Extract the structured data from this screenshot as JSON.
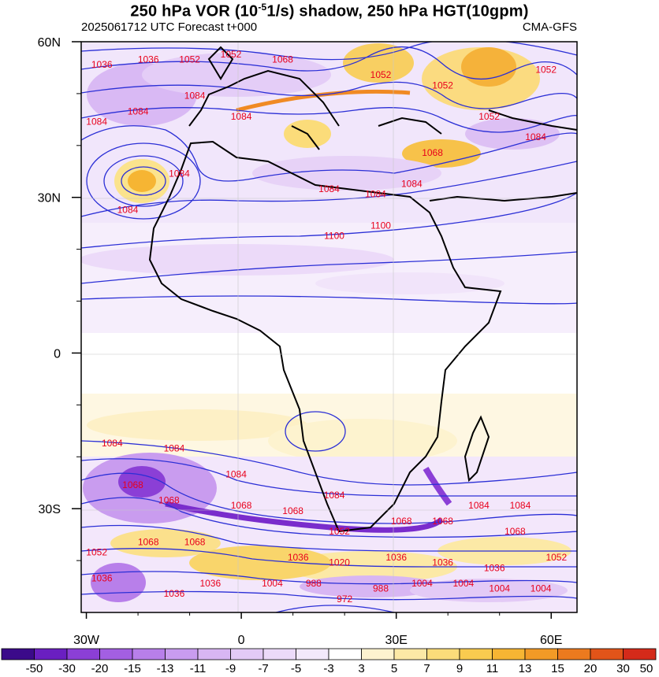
{
  "title": {
    "part1": "250 hPa  VOR (10",
    "sup": "-5",
    "part2": "1/s) shadow, 250 hPa HGT(10gpm)"
  },
  "subtitle": {
    "left": "2025061712 UTC Forecast t+000",
    "right": "CMA-GFS"
  },
  "axes": {
    "x_ticks": [
      {
        "label": "30W",
        "lon": -30
      },
      {
        "label": "0",
        "lon": 0
      },
      {
        "label": "30E",
        "lon": 30
      },
      {
        "label": "60E",
        "lon": 60
      }
    ],
    "y_ticks": [
      {
        "label": "60N",
        "lat": 60
      },
      {
        "label": "30N",
        "lat": 30
      },
      {
        "label": "0",
        "lat": 0
      },
      {
        "label": "30S",
        "lat": -30
      }
    ],
    "lon_range": [
      -31,
      65
    ],
    "lat_range": [
      -50,
      60
    ]
  },
  "colorbar": {
    "labels": [
      "-50",
      "-30",
      "-20",
      "-15",
      "-13",
      "-11",
      "-9",
      "-7",
      "-5",
      "-3",
      "3",
      "5",
      "7",
      "9",
      "11",
      "13",
      "15",
      "20",
      "30",
      "50"
    ],
    "colors": [
      "#3b0a8a",
      "#6a1fc1",
      "#8b3fd6",
      "#a35fe2",
      "#b87fea",
      "#c99cef",
      "#d8b6f3",
      "#e3caf6",
      "#ecdaf9",
      "#f3e9fb",
      "#ffffff",
      "#fdf3cf",
      "#fce9a6",
      "#fbdc7a",
      "#f9cb4f",
      "#f6b533",
      "#f29a26",
      "#ec7a1e",
      "#e25419",
      "#d42a1a"
    ]
  },
  "contour_labels": [
    {
      "text": "1036",
      "lon": -27,
      "lat": 55
    },
    {
      "text": "1036",
      "lon": -18,
      "lat": 56
    },
    {
      "text": "1052",
      "lon": -10,
      "lat": 56
    },
    {
      "text": "1052",
      "lon": -2,
      "lat": 57
    },
    {
      "text": "1068",
      "lon": 8,
      "lat": 56
    },
    {
      "text": "1052",
      "lon": 27,
      "lat": 53
    },
    {
      "text": "1052",
      "lon": 39,
      "lat": 51
    },
    {
      "text": "1052",
      "lon": 59,
      "lat": 54
    },
    {
      "text": "1084",
      "lon": -9,
      "lat": 49
    },
    {
      "text": "1084",
      "lon": -20,
      "lat": 46
    },
    {
      "text": "1084",
      "lon": -28,
      "lat": 44
    },
    {
      "text": "1084",
      "lon": 0,
      "lat": 45
    },
    {
      "text": "1052",
      "lon": 48,
      "lat": 45
    },
    {
      "text": "1084",
      "lon": 57,
      "lat": 41
    },
    {
      "text": "1068",
      "lon": 37,
      "lat": 38
    },
    {
      "text": "1084",
      "lon": -12,
      "lat": 34
    },
    {
      "text": "1084",
      "lon": -22,
      "lat": 27
    },
    {
      "text": "1084",
      "lon": 17,
      "lat": 31
    },
    {
      "text": "1084",
      "lon": 26,
      "lat": 30
    },
    {
      "text": "1084",
      "lon": 33,
      "lat": 32
    },
    {
      "text": "1100",
      "lon": 18,
      "lat": 22
    },
    {
      "text": "1100",
      "lon": 27,
      "lat": 24
    },
    {
      "text": "1084",
      "lon": -25,
      "lat": -18
    },
    {
      "text": "1084",
      "lon": -13,
      "lat": -19
    },
    {
      "text": "1084",
      "lon": -1,
      "lat": -24
    },
    {
      "text": "1068",
      "lon": -21,
      "lat": -26
    },
    {
      "text": "1068",
      "lon": -14,
      "lat": -29
    },
    {
      "text": "1068",
      "lon": 0,
      "lat": -30
    },
    {
      "text": "1068",
      "lon": 10,
      "lat": -31
    },
    {
      "text": "1084",
      "lon": 18,
      "lat": -28
    },
    {
      "text": "1052",
      "lon": 19,
      "lat": -35
    },
    {
      "text": "1068",
      "lon": 31,
      "lat": -33
    },
    {
      "text": "1068",
      "lon": 39,
      "lat": -33
    },
    {
      "text": "1084",
      "lon": 46,
      "lat": -30
    },
    {
      "text": "1084",
      "lon": 54,
      "lat": -30
    },
    {
      "text": "1068",
      "lon": 53,
      "lat": -35
    },
    {
      "text": "1068",
      "lon": -18,
      "lat": -37
    },
    {
      "text": "1068",
      "lon": -9,
      "lat": -37
    },
    {
      "text": "1052",
      "lon": -28,
      "lat": -39
    },
    {
      "text": "1036",
      "lon": -27,
      "lat": -44
    },
    {
      "text": "1036",
      "lon": 11,
      "lat": -40
    },
    {
      "text": "1020",
      "lon": 19,
      "lat": -41
    },
    {
      "text": "1036",
      "lon": 30,
      "lat": -40
    },
    {
      "text": "1036",
      "lon": 39,
      "lat": -41
    },
    {
      "text": "1036",
      "lon": 49,
      "lat": -42
    },
    {
      "text": "1052",
      "lon": 61,
      "lat": -40
    },
    {
      "text": "1036",
      "lon": -13,
      "lat": -47
    },
    {
      "text": "1036",
      "lon": -6,
      "lat": -45
    },
    {
      "text": "1004",
      "lon": 6,
      "lat": -45
    },
    {
      "text": "988",
      "lon": 14,
      "lat": -45
    },
    {
      "text": "988",
      "lon": 27,
      "lat": -46
    },
    {
      "text": "1004",
      "lon": 35,
      "lat": -45
    },
    {
      "text": "1004",
      "lon": 43,
      "lat": -45
    },
    {
      "text": "1004",
      "lon": 50,
      "lat": -46
    },
    {
      "text": "1004",
      "lon": 58,
      "lat": -46
    },
    {
      "text": "972",
      "lon": 20,
      "lat": -48
    }
  ]
}
